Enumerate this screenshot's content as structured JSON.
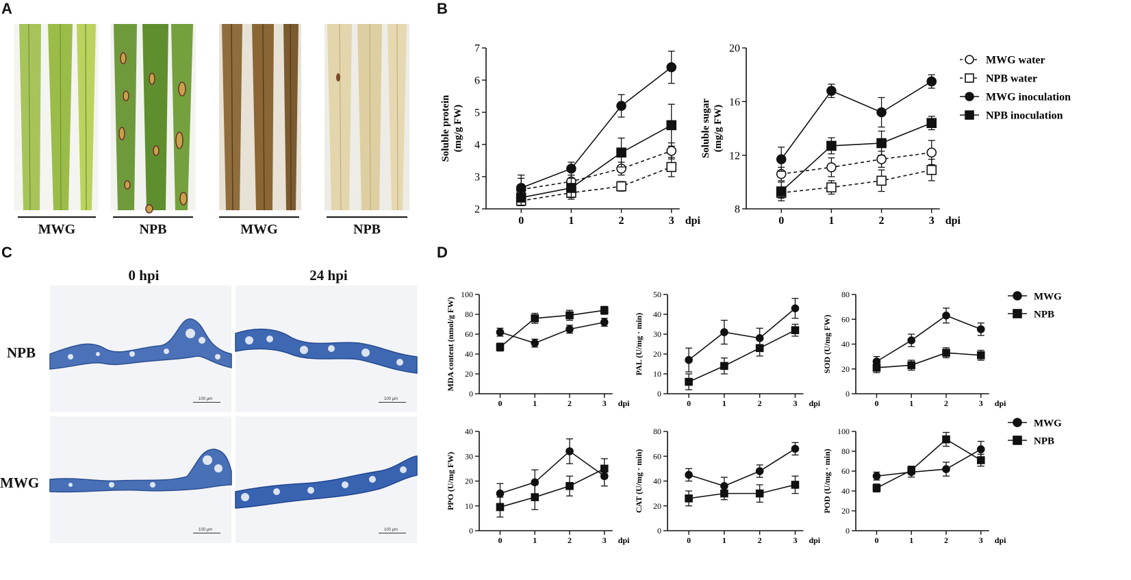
{
  "panels": {
    "a": "A",
    "b": "B",
    "c": "C",
    "d": "D"
  },
  "panel_a": {
    "groups": [
      "MWG",
      "NPB",
      "MWG",
      "NPB"
    ]
  },
  "panel_c": {
    "col_labels": [
      "0 hpi",
      "24 hpi"
    ],
    "row_labels": [
      "NPB",
      "MWG"
    ],
    "scale_text": "100 μm"
  },
  "colors": {
    "ink": "#111111",
    "leaf_green": "#7ea83a",
    "leaf_brown": "#8a6a3a",
    "leaf_pale": "#e9dfbf",
    "stain_blue": "#3a5fae"
  },
  "chart_data": [
    {
      "id": "b1",
      "type": "line",
      "xlabel": "dpi",
      "ylabel": "Soluble protein\n(mg/g FW)",
      "x": [
        0,
        1,
        2,
        3
      ],
      "xlim": [
        -0.7,
        3.4
      ],
      "ylim": [
        2,
        7
      ],
      "yticks": [
        2,
        3,
        4,
        5,
        6,
        7
      ],
      "series": [
        {
          "name": "MWG water",
          "marker": "circle-open",
          "dash": true,
          "values": [
            2.6,
            2.85,
            3.25,
            3.8
          ],
          "err": [
            0.45,
            0.2,
            0.2,
            0.25
          ]
        },
        {
          "name": "NPB water",
          "marker": "square-open",
          "dash": true,
          "values": [
            2.25,
            2.5,
            2.7,
            3.3
          ],
          "err": [
            0.15,
            0.2,
            0.15,
            0.3
          ]
        },
        {
          "name": "MWG inoculation",
          "marker": "circle",
          "dash": false,
          "values": [
            2.65,
            3.25,
            5.2,
            6.4
          ],
          "err": [
            0.3,
            0.2,
            0.35,
            0.5
          ]
        },
        {
          "name": "NPB inoculation",
          "marker": "square",
          "dash": false,
          "values": [
            2.35,
            2.65,
            3.75,
            4.6
          ],
          "err": [
            0.25,
            0.3,
            0.45,
            0.65
          ]
        }
      ]
    },
    {
      "id": "b2",
      "type": "line",
      "xlabel": "dpi",
      "ylabel": "Soluble sugar\n(mg/g FW)",
      "x": [
        0,
        1,
        2,
        3
      ],
      "xlim": [
        -0.7,
        3.4
      ],
      "ylim": [
        8,
        20
      ],
      "yticks": [
        8,
        12,
        16,
        20
      ],
      "series": [
        {
          "name": "MWG water",
          "marker": "circle-open",
          "dash": true,
          "values": [
            10.6,
            11.1,
            11.7,
            12.2
          ],
          "err": [
            0.5,
            0.7,
            0.6,
            0.9
          ]
        },
        {
          "name": "NPB water",
          "marker": "square-open",
          "dash": true,
          "values": [
            9.2,
            9.6,
            10.1,
            10.9
          ],
          "err": [
            0.4,
            0.5,
            0.8,
            0.8
          ]
        },
        {
          "name": "MWG inoculation",
          "marker": "circle",
          "dash": false,
          "values": [
            11.7,
            16.8,
            15.2,
            17.5
          ],
          "err": [
            0.9,
            0.5,
            1.1,
            0.5
          ]
        },
        {
          "name": "NPB inoculation",
          "marker": "square",
          "dash": false,
          "values": [
            9.3,
            12.7,
            12.9,
            14.4
          ],
          "err": [
            0.7,
            0.6,
            0.9,
            0.5
          ]
        }
      ]
    },
    {
      "id": "d1",
      "type": "line",
      "xlabel": "dpi",
      "ylabel": "MDA content (nmol/g FW)",
      "x": [
        0,
        1,
        2,
        3
      ],
      "xlim": [
        -0.6,
        3.3
      ],
      "ylim": [
        0,
        100
      ],
      "yticks": [
        0,
        20,
        40,
        60,
        80,
        100
      ],
      "series": [
        {
          "name": "MWG",
          "marker": "circle",
          "dash": false,
          "values": [
            62,
            51,
            65,
            72
          ],
          "err": [
            4,
            4,
            4,
            4
          ]
        },
        {
          "name": "NPB",
          "marker": "square",
          "dash": false,
          "values": [
            47,
            76,
            79,
            84
          ],
          "err": [
            4,
            5,
            5,
            4
          ]
        }
      ]
    },
    {
      "id": "d2",
      "type": "line",
      "xlabel": "dpi",
      "ylabel": "PAL (U/mg · min)",
      "x": [
        0,
        1,
        2,
        3
      ],
      "xlim": [
        -0.6,
        3.3
      ],
      "ylim": [
        0,
        50
      ],
      "yticks": [
        0,
        10,
        20,
        30,
        40,
        50
      ],
      "series": [
        {
          "name": "MWG",
          "marker": "circle",
          "dash": false,
          "values": [
            17,
            31,
            28,
            43
          ],
          "err": [
            6,
            6,
            5,
            5
          ]
        },
        {
          "name": "NPB",
          "marker": "square",
          "dash": false,
          "values": [
            6,
            14,
            23,
            32
          ],
          "err": [
            4,
            4,
            4,
            3
          ]
        }
      ]
    },
    {
      "id": "d3",
      "type": "line",
      "xlabel": "dpi",
      "ylabel": "SOD (U/mg FW)",
      "x": [
        0,
        1,
        2,
        3
      ],
      "xlim": [
        -0.6,
        3.3
      ],
      "ylim": [
        0,
        80
      ],
      "yticks": [
        0,
        20,
        40,
        60,
        80
      ],
      "series": [
        {
          "name": "MWG",
          "marker": "circle",
          "dash": false,
          "values": [
            26,
            43,
            63,
            52
          ],
          "err": [
            4,
            5,
            6,
            5
          ]
        },
        {
          "name": "NPB",
          "marker": "square",
          "dash": false,
          "values": [
            21,
            23,
            33,
            31
          ],
          "err": [
            4,
            4,
            4,
            4
          ]
        }
      ]
    },
    {
      "id": "d4",
      "type": "line",
      "xlabel": "dpi",
      "ylabel": "PPO (U/mg FW)",
      "x": [
        0,
        1,
        2,
        3
      ],
      "xlim": [
        -0.6,
        3.3
      ],
      "ylim": [
        0,
        40
      ],
      "yticks": [
        0,
        10,
        20,
        30,
        40
      ],
      "series": [
        {
          "name": "MWG",
          "marker": "circle",
          "dash": false,
          "values": [
            15,
            19.5,
            32,
            22
          ],
          "err": [
            4,
            5,
            5,
            4
          ]
        },
        {
          "name": "NPB",
          "marker": "square",
          "dash": false,
          "values": [
            9.5,
            13.5,
            18,
            25
          ],
          "err": [
            4,
            5,
            4,
            4
          ]
        }
      ]
    },
    {
      "id": "d5",
      "type": "line",
      "xlabel": "dpi",
      "ylabel": "CAT (U/mg · min)",
      "x": [
        0,
        1,
        2,
        3
      ],
      "xlim": [
        -0.6,
        3.3
      ],
      "ylim": [
        0,
        80
      ],
      "yticks": [
        0,
        20,
        40,
        60,
        80
      ],
      "series": [
        {
          "name": "MWG",
          "marker": "circle",
          "dash": false,
          "values": [
            45,
            36,
            48,
            66
          ],
          "err": [
            5,
            7,
            5,
            5
          ]
        },
        {
          "name": "NPB",
          "marker": "square",
          "dash": false,
          "values": [
            26,
            30,
            30,
            37
          ],
          "err": [
            6,
            5,
            7,
            7
          ]
        }
      ]
    },
    {
      "id": "d6",
      "type": "line",
      "xlabel": "dpi",
      "ylabel": "POD (U/mg · min)",
      "x": [
        0,
        1,
        2,
        3
      ],
      "xlim": [
        -0.6,
        3.3
      ],
      "ylim": [
        0,
        100
      ],
      "yticks": [
        0,
        20,
        40,
        60,
        80,
        100
      ],
      "series": [
        {
          "name": "MWG",
          "marker": "circle",
          "dash": false,
          "values": [
            55,
            59,
            62,
            82
          ],
          "err": [
            4,
            5,
            7,
            8
          ]
        },
        {
          "name": "NPB",
          "marker": "square",
          "dash": false,
          "values": [
            43,
            61,
            92,
            71
          ],
          "err": [
            4,
            4,
            7,
            6
          ]
        }
      ]
    }
  ],
  "legends": {
    "b": [
      "MWG water",
      "NPB water",
      "MWG inoculation",
      "NPB inoculation"
    ],
    "d_top": [
      "MWG",
      "NPB"
    ],
    "d_bottom": [
      "MWG",
      "NPB"
    ]
  }
}
